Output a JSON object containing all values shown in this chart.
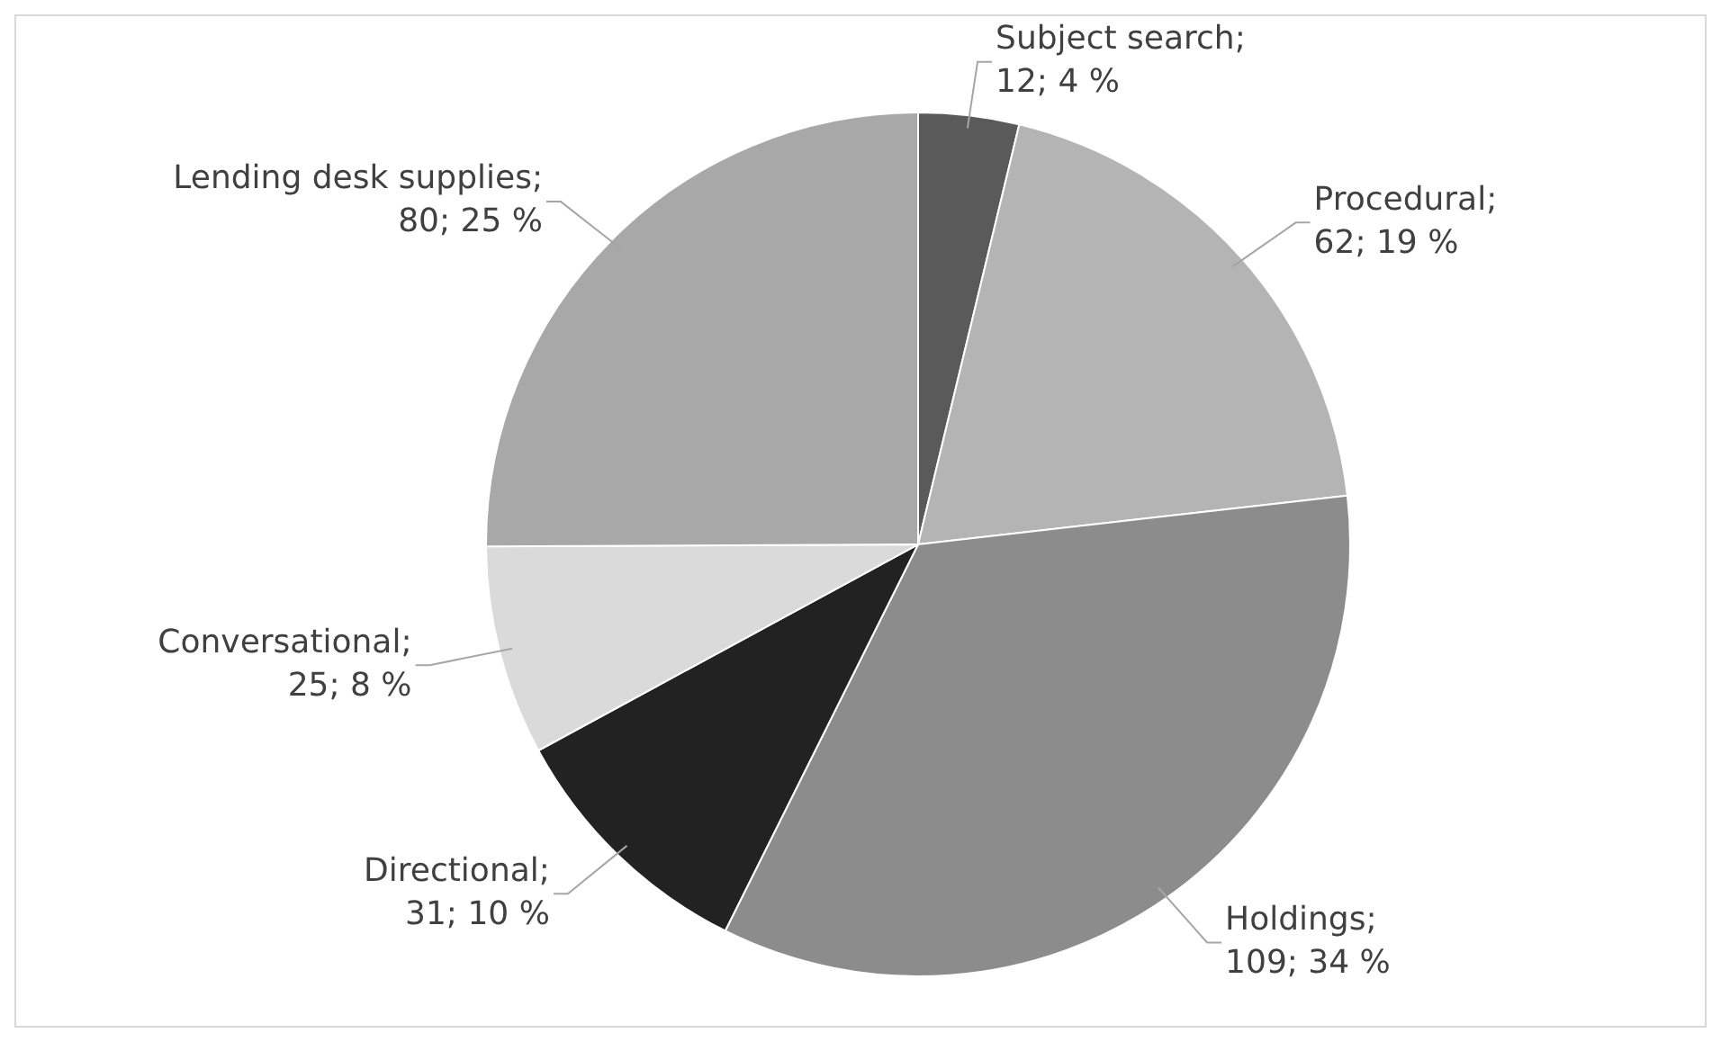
{
  "chart_data": {
    "type": "pie",
    "categories": [
      "Subject search",
      "Procedural",
      "Holdings",
      "Directional",
      "Conversational",
      "Lending desk supplies"
    ],
    "values": [
      12,
      62,
      109,
      31,
      25,
      80
    ],
    "colors": [
      "#5a5a5a",
      "#b4b4b4",
      "#8c8c8c",
      "#222222",
      "#dadada",
      "#a8a8a8"
    ],
    "value_labels": [
      ";\n12; 4 %",
      ";\n62; 19 %",
      ";\n109; 34 %",
      ";\n31; 10 %",
      ";\n25; 8 %",
      ";\n80; 25 %"
    ],
    "legend": false
  }
}
